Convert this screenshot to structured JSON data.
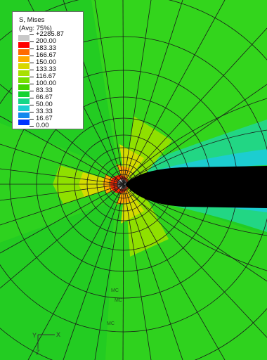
{
  "legend": {
    "title_line1": "S, Mises",
    "title_line2": "(Avg: 75%)",
    "entries": [
      "+2285.87",
      "200.00",
      "183.33",
      "166.67",
      "150.00",
      "133.33",
      "116.67",
      "100.00",
      "83.33",
      "66.67",
      "50.00",
      "33.33",
      "16.67",
      "0.00"
    ],
    "band_colors": [
      "#c8c8c8",
      "#ff0000",
      "#ff6a00",
      "#ffaa00",
      "#d8d800",
      "#a8e000",
      "#77df00",
      "#44d400",
      "#13d230",
      "#15d787",
      "#1ccfd2",
      "#1288ee",
      "#0033ff"
    ]
  },
  "triad": {
    "x_label": "X",
    "y_label": "Y",
    "z_label": "Z"
  },
  "marker_labels": [
    "MC",
    "MC",
    "MC"
  ],
  "colors": {
    "background": "#22cc22",
    "crack": "#000000",
    "mesh": "#1a1a1a"
  }
}
